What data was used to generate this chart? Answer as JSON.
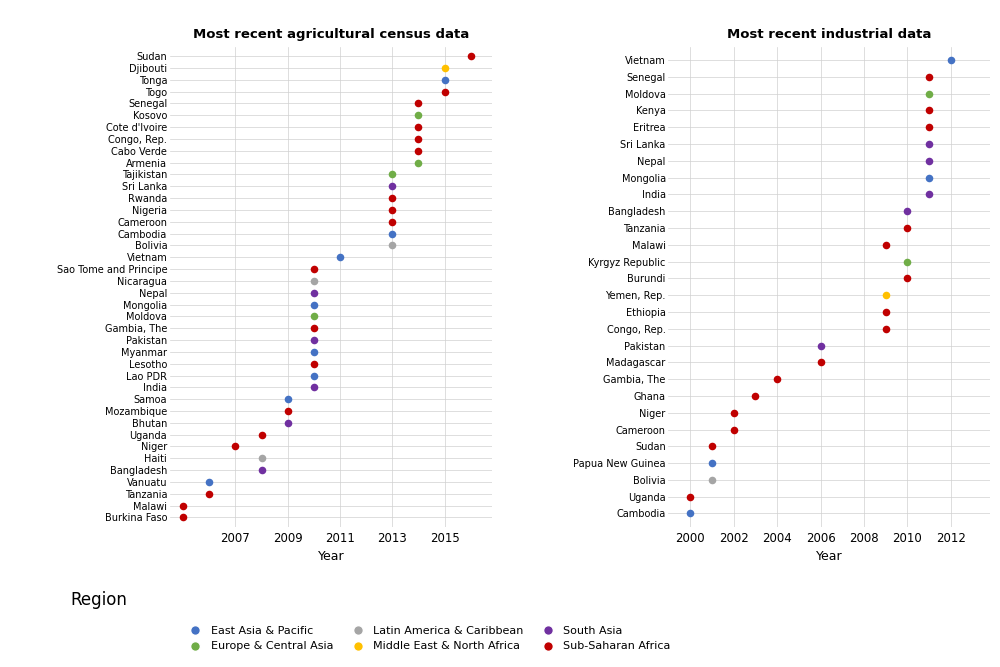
{
  "agri_title": "Most recent agricultural census data",
  "indus_title": "Most recent industrial data",
  "xlabel": "Year",
  "region_colors": {
    "East Asia & Pacific": "#4472c4",
    "Europe & Central Asia": "#70ad47",
    "Latin America & Caribbean": "#a5a5a5",
    "Middle East & North Africa": "#ffc000",
    "South Asia": "#7030a0",
    "Sub-Saharan Africa": "#c00000"
  },
  "agri_data": [
    {
      "country": "Sudan",
      "year": 2016,
      "region": "Sub-Saharan Africa"
    },
    {
      "country": "Djibouti",
      "year": 2015,
      "region": "Middle East & North Africa"
    },
    {
      "country": "Tonga",
      "year": 2015,
      "region": "East Asia & Pacific"
    },
    {
      "country": "Togo",
      "year": 2015,
      "region": "Sub-Saharan Africa"
    },
    {
      "country": "Senegal",
      "year": 2014,
      "region": "Sub-Saharan Africa"
    },
    {
      "country": "Kosovo",
      "year": 2014,
      "region": "Europe & Central Asia"
    },
    {
      "country": "Cote d'Ivoire",
      "year": 2014,
      "region": "Sub-Saharan Africa"
    },
    {
      "country": "Congo, Rep.",
      "year": 2014,
      "region": "Sub-Saharan Africa"
    },
    {
      "country": "Cabo Verde",
      "year": 2014,
      "region": "Sub-Saharan Africa"
    },
    {
      "country": "Armenia",
      "year": 2014,
      "region": "Europe & Central Asia"
    },
    {
      "country": "Tajikistan",
      "year": 2013,
      "region": "Europe & Central Asia"
    },
    {
      "country": "Sri Lanka",
      "year": 2013,
      "region": "South Asia"
    },
    {
      "country": "Rwanda",
      "year": 2013,
      "region": "Sub-Saharan Africa"
    },
    {
      "country": "Nigeria",
      "year": 2013,
      "region": "Sub-Saharan Africa"
    },
    {
      "country": "Cameroon",
      "year": 2013,
      "region": "Sub-Saharan Africa"
    },
    {
      "country": "Cambodia",
      "year": 2013,
      "region": "East Asia & Pacific"
    },
    {
      "country": "Bolivia",
      "year": 2013,
      "region": "Latin America & Caribbean"
    },
    {
      "country": "Vietnam",
      "year": 2011,
      "region": "East Asia & Pacific"
    },
    {
      "country": "Sao Tome and Principe",
      "year": 2010,
      "region": "Sub-Saharan Africa"
    },
    {
      "country": "Nicaragua",
      "year": 2010,
      "region": "Latin America & Caribbean"
    },
    {
      "country": "Nepal",
      "year": 2010,
      "region": "South Asia"
    },
    {
      "country": "Mongolia",
      "year": 2010,
      "region": "East Asia & Pacific"
    },
    {
      "country": "Moldova",
      "year": 2010,
      "region": "Europe & Central Asia"
    },
    {
      "country": "Gambia, The",
      "year": 2010,
      "region": "Sub-Saharan Africa"
    },
    {
      "country": "Pakistan",
      "year": 2010,
      "region": "South Asia"
    },
    {
      "country": "Myanmar",
      "year": 2010,
      "region": "East Asia & Pacific"
    },
    {
      "country": "Lesotho",
      "year": 2010,
      "region": "Sub-Saharan Africa"
    },
    {
      "country": "Lao PDR",
      "year": 2010,
      "region": "East Asia & Pacific"
    },
    {
      "country": "India",
      "year": 2010,
      "region": "South Asia"
    },
    {
      "country": "Samoa",
      "year": 2009,
      "region": "East Asia & Pacific"
    },
    {
      "country": "Mozambique",
      "year": 2009,
      "region": "Sub-Saharan Africa"
    },
    {
      "country": "Bhutan",
      "year": 2009,
      "region": "South Asia"
    },
    {
      "country": "Uganda",
      "year": 2008,
      "region": "Sub-Saharan Africa"
    },
    {
      "country": "Niger",
      "year": 2007,
      "region": "Sub-Saharan Africa"
    },
    {
      "country": "Haiti",
      "year": 2008,
      "region": "Latin America & Caribbean"
    },
    {
      "country": "Bangladesh",
      "year": 2008,
      "region": "South Asia"
    },
    {
      "country": "Vanuatu",
      "year": 2006,
      "region": "East Asia & Pacific"
    },
    {
      "country": "Tanzania",
      "year": 2006,
      "region": "Sub-Saharan Africa"
    },
    {
      "country": "Malawi",
      "year": 2005,
      "region": "Sub-Saharan Africa"
    },
    {
      "country": "Burkina Faso",
      "year": 2005,
      "region": "Sub-Saharan Africa"
    }
  ],
  "indus_data": [
    {
      "country": "Vietnam",
      "year": 2012,
      "region": "East Asia & Pacific"
    },
    {
      "country": "Senegal",
      "year": 2011,
      "region": "Sub-Saharan Africa"
    },
    {
      "country": "Moldova",
      "year": 2011,
      "region": "Europe & Central Asia"
    },
    {
      "country": "Kenya",
      "year": 2011,
      "region": "Sub-Saharan Africa"
    },
    {
      "country": "Eritrea",
      "year": 2011,
      "region": "Sub-Saharan Africa"
    },
    {
      "country": "Sri Lanka",
      "year": 2011,
      "region": "South Asia"
    },
    {
      "country": "Nepal",
      "year": 2011,
      "region": "South Asia"
    },
    {
      "country": "Mongolia",
      "year": 2011,
      "region": "East Asia & Pacific"
    },
    {
      "country": "India",
      "year": 2011,
      "region": "South Asia"
    },
    {
      "country": "Bangladesh",
      "year": 2010,
      "region": "South Asia"
    },
    {
      "country": "Tanzania",
      "year": 2010,
      "region": "Sub-Saharan Africa"
    },
    {
      "country": "Malawi",
      "year": 2009,
      "region": "Sub-Saharan Africa"
    },
    {
      "country": "Kyrgyz Republic",
      "year": 2010,
      "region": "Europe & Central Asia"
    },
    {
      "country": "Burundi",
      "year": 2010,
      "region": "Sub-Saharan Africa"
    },
    {
      "country": "Yemen, Rep.",
      "year": 2009,
      "region": "Middle East & North Africa"
    },
    {
      "country": "Ethiopia",
      "year": 2009,
      "region": "Sub-Saharan Africa"
    },
    {
      "country": "Congo, Rep.",
      "year": 2009,
      "region": "Sub-Saharan Africa"
    },
    {
      "country": "Pakistan",
      "year": 2006,
      "region": "South Asia"
    },
    {
      "country": "Madagascar",
      "year": 2006,
      "region": "Sub-Saharan Africa"
    },
    {
      "country": "Gambia, The",
      "year": 2004,
      "region": "Sub-Saharan Africa"
    },
    {
      "country": "Ghana",
      "year": 2003,
      "region": "Sub-Saharan Africa"
    },
    {
      "country": "Niger",
      "year": 2002,
      "region": "Sub-Saharan Africa"
    },
    {
      "country": "Cameroon",
      "year": 2002,
      "region": "Sub-Saharan Africa"
    },
    {
      "country": "Sudan",
      "year": 2001,
      "region": "Sub-Saharan Africa"
    },
    {
      "country": "Papua New Guinea",
      "year": 2001,
      "region": "East Asia & Pacific"
    },
    {
      "country": "Bolivia",
      "year": 2001,
      "region": "Latin America & Caribbean"
    },
    {
      "country": "Uganda",
      "year": 2000,
      "region": "Sub-Saharan Africa"
    },
    {
      "country": "Cambodia",
      "year": 2000,
      "region": "East Asia & Pacific"
    }
  ],
  "agri_xlim": [
    2004.5,
    2016.8
  ],
  "agri_xticks": [
    2007,
    2009,
    2011,
    2013,
    2015
  ],
  "indus_xlim": [
    1999.0,
    2013.8
  ],
  "indus_xticks": [
    2000,
    2002,
    2004,
    2006,
    2008,
    2010,
    2012
  ],
  "legend_items": [
    [
      "East Asia & Pacific",
      "#4472c4"
    ],
    [
      "Europe & Central Asia",
      "#70ad47"
    ],
    [
      "Latin America & Caribbean",
      "#a5a5a5"
    ],
    [
      "Middle East & North Africa",
      "#ffc000"
    ],
    [
      "South Asia",
      "#7030a0"
    ],
    [
      "Sub-Saharan Africa",
      "#c00000"
    ]
  ]
}
